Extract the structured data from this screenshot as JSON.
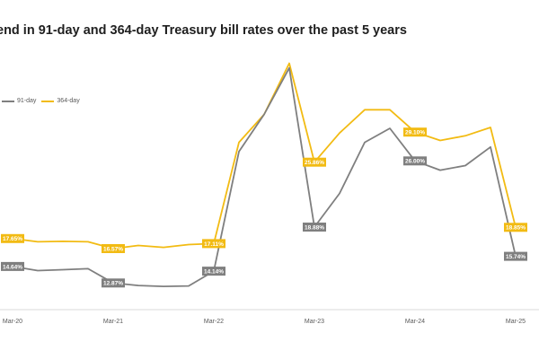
{
  "chart_data": {
    "type": "line",
    "title": "end in 91-day and 364-day Treasury bill rates over the past 5 years",
    "xlabel": "",
    "ylabel": "",
    "ylim": [
      10,
      38
    ],
    "grid": false,
    "legend_position": "top-left",
    "x_ticks": [
      "Mar-20",
      "Mar-21",
      "Mar-22",
      "Mar-23",
      "Mar-24",
      "Mar-25"
    ],
    "series": [
      {
        "name": "91-day",
        "color": "#7f7f7f",
        "points": [
          {
            "x": 0,
            "y": 14.64,
            "label": "14.64%"
          },
          {
            "x": 0.25,
            "y": 14.2
          },
          {
            "x": 0.5,
            "y": 14.3
          },
          {
            "x": 0.75,
            "y": 14.4
          },
          {
            "x": 1,
            "y": 12.87,
            "label": "12.87%"
          },
          {
            "x": 1.25,
            "y": 12.6
          },
          {
            "x": 1.5,
            "y": 12.5
          },
          {
            "x": 1.75,
            "y": 12.55
          },
          {
            "x": 2,
            "y": 14.14,
            "label": "14.14%"
          },
          {
            "x": 2.25,
            "y": 27.0
          },
          {
            "x": 2.5,
            "y": 31.0
          },
          {
            "x": 2.75,
            "y": 36.0
          },
          {
            "x": 3,
            "y": 18.88,
            "label": "18.88%"
          },
          {
            "x": 3.25,
            "y": 22.5
          },
          {
            "x": 3.5,
            "y": 28.0
          },
          {
            "x": 3.75,
            "y": 29.5
          },
          {
            "x": 4,
            "y": 26.0,
            "label": "26.00%"
          },
          {
            "x": 4.25,
            "y": 25.0
          },
          {
            "x": 4.5,
            "y": 25.5
          },
          {
            "x": 4.75,
            "y": 27.5
          },
          {
            "x": 5,
            "y": 15.74,
            "label": "15.74%"
          }
        ]
      },
      {
        "name": "364-day",
        "color": "#f2bb13",
        "points": [
          {
            "x": 0,
            "y": 17.65,
            "label": "17.65%"
          },
          {
            "x": 0.25,
            "y": 17.3
          },
          {
            "x": 0.5,
            "y": 17.35
          },
          {
            "x": 0.75,
            "y": 17.3
          },
          {
            "x": 1,
            "y": 16.57,
            "label": "16.57%"
          },
          {
            "x": 1.25,
            "y": 16.9
          },
          {
            "x": 1.5,
            "y": 16.7
          },
          {
            "x": 1.75,
            "y": 17.0
          },
          {
            "x": 2,
            "y": 17.11,
            "label": "17.11%"
          },
          {
            "x": 2.25,
            "y": 28.0
          },
          {
            "x": 2.5,
            "y": 31.0
          },
          {
            "x": 2.75,
            "y": 36.5
          },
          {
            "x": 3,
            "y": 25.86,
            "label": "25.86%"
          },
          {
            "x": 3.25,
            "y": 29.0
          },
          {
            "x": 3.5,
            "y": 31.5
          },
          {
            "x": 3.75,
            "y": 31.5
          },
          {
            "x": 4,
            "y": 29.1,
            "label": "29.10%"
          },
          {
            "x": 4.25,
            "y": 28.2
          },
          {
            "x": 4.5,
            "y": 28.7
          },
          {
            "x": 4.75,
            "y": 29.6
          },
          {
            "x": 5,
            "y": 18.85,
            "label": "18.85%"
          }
        ]
      }
    ]
  }
}
